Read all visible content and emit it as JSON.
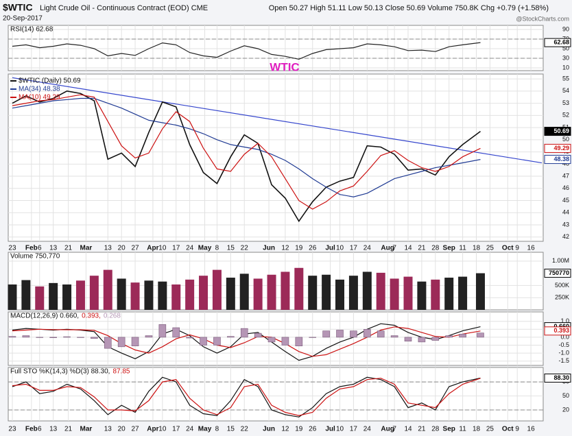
{
  "header": {
    "symbol": "$WTIC",
    "name": "Light Crude Oil - Continuous Contract (EOD) CME",
    "date": "20-Sep-2017",
    "quote": "Open 50.27 High 51.11 Low 50.13 Close 50.69 Volume 750.8K Chg +0.79 (+1.58%)",
    "watermark": "@StockCharts.com"
  },
  "chart_data": [
    {
      "type": "line",
      "annotation": "WTIC",
      "annotation_color": "#e020c0",
      "series": [
        {
          "name": "RSI(14) 62.68",
          "color": "#222222",
          "values": [
            55,
            58,
            52,
            55,
            60,
            57,
            50,
            35,
            40,
            36,
            50,
            62,
            58,
            42,
            35,
            32,
            45,
            56,
            50,
            38,
            34,
            28,
            40,
            48,
            50,
            52,
            60,
            58,
            54,
            46,
            47,
            44,
            54,
            58,
            62.68
          ]
        }
      ],
      "ylim": [
        4.3,
        98.6
      ],
      "yticks": [
        10,
        30,
        50,
        70,
        90
      ],
      "dashed": [
        70,
        30
      ],
      "tags": [
        {
          "value": 62.68,
          "color": "#000000"
        }
      ]
    },
    {
      "type": "line",
      "x": [
        0,
        1,
        2,
        3,
        4,
        5,
        6,
        7,
        8,
        9,
        10,
        11,
        12,
        13,
        14,
        15,
        16,
        17,
        18,
        19,
        20,
        21,
        22,
        23,
        24,
        25,
        26,
        27,
        28,
        29,
        30,
        31,
        32,
        33,
        34.3
      ],
      "xlim": [
        -0.3,
        38.9
      ],
      "xticks": [
        {
          "value": 0,
          "label": "23"
        },
        {
          "value": 1.4,
          "label": "Feb"
        },
        {
          "value": 2,
          "label": "6"
        },
        {
          "value": 3,
          "label": "13"
        },
        {
          "value": 4.1,
          "label": "21"
        },
        {
          "value": 5.4,
          "label": "Mar"
        },
        {
          "value": 7,
          "label": "13"
        },
        {
          "value": 8,
          "label": "20"
        },
        {
          "value": 9,
          "label": "27"
        },
        {
          "value": 10.3,
          "label": "Apr"
        },
        {
          "value": 11,
          "label": "10"
        },
        {
          "value": 12,
          "label": "17"
        },
        {
          "value": 13,
          "label": "24"
        },
        {
          "value": 14.1,
          "label": "May"
        },
        {
          "value": 15,
          "label": "8"
        },
        {
          "value": 16,
          "label": "15"
        },
        {
          "value": 17,
          "label": "22"
        },
        {
          "value": 18.8,
          "label": "Jun"
        },
        {
          "value": 20,
          "label": "12"
        },
        {
          "value": 21,
          "label": "19"
        },
        {
          "value": 22,
          "label": "26"
        },
        {
          "value": 23.3,
          "label": "Jul"
        },
        {
          "value": 24,
          "label": "10"
        },
        {
          "value": 25,
          "label": "17"
        },
        {
          "value": 26,
          "label": "24"
        },
        {
          "value": 27.5,
          "label": "Aug"
        },
        {
          "value": 28,
          "label": "7"
        },
        {
          "value": 29,
          "label": "14"
        },
        {
          "value": 30,
          "label": "21"
        },
        {
          "value": 31,
          "label": "28"
        },
        {
          "value": 32,
          "label": "Sep"
        },
        {
          "value": 33,
          "label": "11"
        },
        {
          "value": 34,
          "label": "18"
        },
        {
          "value": 35,
          "label": "25"
        },
        {
          "value": 36.3,
          "label": "Oct"
        },
        {
          "value": 37,
          "label": "9"
        },
        {
          "value": 38,
          "label": "16"
        }
      ],
      "series": [
        {
          "name": "$WTIC (Daily) 50.69",
          "color": "#111111",
          "values": [
            53.0,
            53.6,
            53.1,
            53.4,
            54.0,
            53.8,
            53.2,
            48.4,
            48.9,
            47.8,
            50.6,
            53.1,
            52.7,
            49.6,
            47.3,
            46.4,
            48.6,
            50.4,
            49.7,
            46.3,
            45.2,
            43.3,
            44.9,
            46.1,
            46.6,
            46.9,
            49.5,
            49.4,
            48.8,
            47.5,
            47.6,
            47.1,
            48.6,
            49.6,
            50.69
          ]
        },
        {
          "name": "MA(34) 48.38",
          "color": "#1f3a93",
          "values": [
            52.6,
            52.8,
            53.0,
            53.2,
            53.3,
            53.4,
            53.4,
            53.0,
            52.6,
            52.1,
            51.6,
            51.4,
            51.2,
            50.9,
            50.5,
            50.0,
            49.6,
            49.4,
            49.2,
            48.8,
            48.3,
            47.6,
            46.8,
            46.1,
            45.5,
            45.3,
            45.6,
            46.2,
            46.8,
            47.1,
            47.4,
            47.7,
            47.9,
            48.1,
            48.38
          ]
        },
        {
          "name": "MA(10) 49.29",
          "color": "#cc1111",
          "values": [
            52.8,
            53.0,
            53.2,
            53.3,
            53.5,
            53.7,
            53.5,
            51.5,
            49.5,
            48.5,
            48.9,
            50.9,
            52.3,
            51.5,
            49.3,
            47.6,
            47.4,
            48.8,
            49.7,
            48.6,
            46.8,
            45.0,
            44.3,
            44.9,
            45.8,
            46.2,
            47.4,
            48.7,
            49.1,
            48.3,
            47.7,
            47.4,
            47.8,
            48.6,
            49.29
          ]
        }
      ],
      "trendline": {
        "x": [
          0,
          38.8
        ],
        "values": [
          55.1,
          48.1
        ],
        "color": "#3344cc"
      },
      "ylim": [
        41.65,
        55.4
      ],
      "yticks": [
        42,
        43,
        44,
        45,
        46,
        47,
        48,
        49,
        50,
        51,
        52,
        53,
        54,
        55
      ],
      "tags": [
        {
          "value": 50.69,
          "color": "#000000"
        },
        {
          "value": 49.29,
          "color": "#cc1111"
        },
        {
          "value": 48.38,
          "color": "#1f3a93"
        }
      ]
    },
    {
      "type": "bar",
      "up_color": "#222222",
      "down_color": "#9c2a58",
      "series": [
        {
          "name": "Volume 750,770",
          "color": "#222222",
          "values": [
            520000,
            610000,
            480000,
            550000,
            520000,
            600000,
            700000,
            820000,
            640000,
            560000,
            600000,
            580000,
            520000,
            620000,
            700000,
            820000,
            660000,
            740000,
            640000,
            720000,
            780000,
            860000,
            700000,
            720000,
            620000,
            700000,
            780000,
            760000,
            640000,
            680000,
            580000,
            620000,
            660000,
            680000,
            750770
          ]
        }
      ],
      "ylim": [
        0,
        1180000
      ],
      "yticks": [
        {
          "value": 250000,
          "label": "250K"
        },
        {
          "value": 500000,
          "label": "500K"
        },
        {
          "value": 1000000,
          "label": "1.00M"
        }
      ],
      "tags": [
        {
          "value": 750770,
          "color": "#000000"
        }
      ]
    },
    {
      "type": "line",
      "series": [
        {
          "name": "MACD(12,26,9) 0.660,",
          "color": "#111111",
          "values": [
            0.45,
            0.55,
            0.5,
            0.45,
            0.5,
            0.45,
            0.35,
            -0.6,
            -1.0,
            -1.35,
            -0.9,
            0.2,
            0.5,
            0.1,
            -0.6,
            -1.0,
            -0.6,
            0.2,
            0.3,
            -0.3,
            -0.9,
            -1.45,
            -1.2,
            -0.7,
            -0.3,
            0.0,
            0.5,
            0.85,
            0.75,
            0.3,
            0.0,
            -0.15,
            0.1,
            0.4,
            0.66
          ]
        },
        {
          "name": "0.393,",
          "color": "#cc1111",
          "values": [
            0.4,
            0.45,
            0.5,
            0.48,
            0.47,
            0.47,
            0.43,
            0.1,
            -0.4,
            -0.8,
            -1.0,
            -0.6,
            -0.1,
            0.15,
            -0.1,
            -0.5,
            -0.65,
            -0.35,
            0.05,
            0.0,
            -0.4,
            -0.9,
            -1.2,
            -1.1,
            -0.75,
            -0.4,
            0.0,
            0.45,
            0.65,
            0.55,
            0.3,
            0.05,
            0.0,
            0.2,
            0.393
          ]
        },
        {
          "name": "0.268",
          "color": "#b596b5",
          "type": "bar",
          "values": [
            0.05,
            0.1,
            0,
            -0.03,
            0.03,
            -0.02,
            -0.08,
            -0.7,
            -0.6,
            -0.55,
            0.1,
            0.8,
            0.6,
            -0.05,
            -0.5,
            -0.5,
            0.05,
            0.55,
            0.25,
            -0.3,
            -0.5,
            -0.55,
            0,
            0.4,
            0.45,
            0.4,
            0.5,
            0.4,
            0.1,
            -0.25,
            -0.3,
            -0.2,
            0.1,
            0.2,
            0.268
          ]
        }
      ],
      "ylim": [
        -1.77,
        1.59
      ],
      "yticks": [
        -1.5,
        {
          "value": -1,
          "label": "-1.0"
        },
        -0.5,
        {
          "value": 0,
          "label": "0.0"
        },
        0.5,
        {
          "value": 1,
          "label": "1.0"
        }
      ],
      "tags": [
        {
          "value": 0.66,
          "label": "0.660",
          "color": "#000000"
        },
        {
          "value": 0.393,
          "label": "0.393",
          "color": "#cc1111"
        }
      ]
    },
    {
      "type": "line",
      "series": [
        {
          "name": "Full STO %K(14,3) %D(3) 88.30,",
          "color": "#111111",
          "values": [
            70,
            80,
            55,
            60,
            75,
            65,
            40,
            10,
            30,
            15,
            60,
            90,
            80,
            30,
            12,
            8,
            40,
            85,
            70,
            20,
            10,
            5,
            25,
            55,
            70,
            75,
            90,
            85,
            70,
            25,
            35,
            20,
            70,
            80,
            88.3
          ]
        },
        {
          "name": "87.85",
          "color": "#cc1111",
          "values": [
            72,
            75,
            62,
            62,
            70,
            68,
            48,
            20,
            20,
            18,
            40,
            80,
            85,
            45,
            20,
            10,
            25,
            70,
            75,
            30,
            15,
            8,
            15,
            45,
            65,
            70,
            85,
            88,
            75,
            35,
            30,
            25,
            55,
            75,
            87.85
          ]
        }
      ],
      "ylim": [
        -3.4,
        111
      ],
      "yticks": [
        20,
        50,
        80
      ],
      "dashed": [
        80,
        20
      ],
      "tags": [
        {
          "value": 88.3,
          "label": "88.30",
          "color": "#000000"
        }
      ]
    }
  ]
}
